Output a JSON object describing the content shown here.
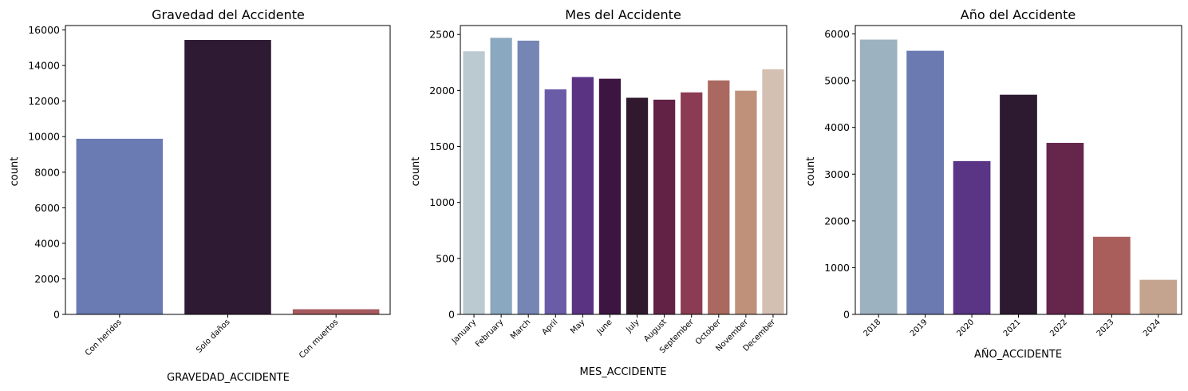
{
  "chart_data": [
    {
      "type": "bar",
      "title": "Gravedad del Accidente",
      "xlabel": "GRAVEDAD_ACCIDENTE",
      "ylabel": "count",
      "categories": [
        "Con heridos",
        "Solo daños",
        "Con muertos"
      ],
      "values": [
        9880,
        15440,
        290
      ],
      "colors": [
        "#6a7ab2",
        "#2e1a33",
        "#a75a5e"
      ],
      "ylim": [
        0,
        16250
      ],
      "yticks": [
        0,
        2000,
        4000,
        6000,
        8000,
        10000,
        12000,
        14000,
        16000
      ],
      "grid": false,
      "legend": "none"
    },
    {
      "type": "bar",
      "title": "Mes del Accidente",
      "xlabel": "MES_ACCIDENTE",
      "ylabel": "count",
      "categories": [
        "January",
        "February",
        "March",
        "April",
        "May",
        "June",
        "July",
        "August",
        "September",
        "October",
        "November",
        "December"
      ],
      "values": [
        2350,
        2470,
        2445,
        2010,
        2120,
        2105,
        1935,
        1918,
        1983,
        2090,
        1998,
        2190
      ],
      "colors": [
        "#bacad0",
        "#8aa8bf",
        "#7585b4",
        "#6a5ca7",
        "#5a3383",
        "#3c1640",
        "#30192f",
        "#612245",
        "#8b3b52",
        "#aa6960",
        "#bf917b",
        "#d3c0b3"
      ],
      "ylim": [
        0,
        2580
      ],
      "yticks": [
        0,
        500,
        1000,
        1500,
        2000,
        2500
      ],
      "grid": false,
      "legend": "none"
    },
    {
      "type": "bar",
      "title": "Año del Accidente",
      "xlabel": "AÑO_ACCIDENTE",
      "ylabel": "count",
      "categories": [
        "2018",
        "2019",
        "2020",
        "2021",
        "2022",
        "2023",
        "2024"
      ],
      "values": [
        5880,
        5640,
        3280,
        4700,
        3670,
        1660,
        740
      ],
      "colors": [
        "#9cb2c1",
        "#6b7ab1",
        "#5a3586",
        "#2d1a31",
        "#66254b",
        "#a95e5c",
        "#c4a48f"
      ],
      "ylim": [
        0,
        6180
      ],
      "yticks": [
        0,
        1000,
        2000,
        3000,
        4000,
        5000,
        6000
      ],
      "grid": false,
      "legend": "none"
    }
  ]
}
